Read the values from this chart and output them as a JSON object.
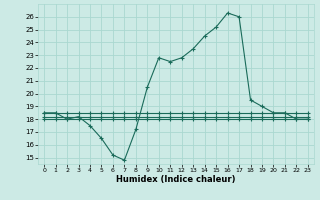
{
  "title": "",
  "xlabel": "Humidex (Indice chaleur)",
  "ylabel": "",
  "bg_color": "#cceae5",
  "grid_color": "#aad8d0",
  "line_color": "#1a6b5a",
  "x_data": [
    0,
    1,
    2,
    3,
    4,
    5,
    6,
    7,
    8,
    9,
    10,
    11,
    12,
    13,
    14,
    15,
    16,
    17,
    18,
    19,
    20,
    21,
    22,
    23
  ],
  "y_main": [
    18.5,
    18.5,
    18.0,
    18.2,
    17.5,
    16.5,
    15.2,
    14.8,
    17.2,
    20.5,
    22.8,
    22.5,
    22.8,
    23.5,
    24.5,
    25.2,
    26.3,
    26.0,
    19.5,
    19.0,
    18.5,
    18.5,
    18.0,
    18.0
  ],
  "y_flat1": [
    18.5,
    18.5,
    18.5,
    18.5,
    18.5,
    18.5,
    18.5,
    18.5,
    18.5,
    18.5,
    18.5,
    18.5,
    18.5,
    18.5,
    18.5,
    18.5,
    18.5,
    18.5,
    18.5,
    18.5,
    18.5,
    18.5,
    18.5,
    18.5
  ],
  "y_flat2": [
    18.0,
    18.0,
    18.0,
    18.0,
    18.0,
    18.0,
    18.0,
    18.0,
    18.0,
    18.0,
    18.0,
    18.0,
    18.0,
    18.0,
    18.0,
    18.0,
    18.0,
    18.0,
    18.0,
    18.0,
    18.0,
    18.0,
    18.0,
    18.0
  ],
  "y_flat3": [
    18.2,
    18.2,
    18.2,
    18.2,
    18.2,
    18.2,
    18.2,
    18.2,
    18.2,
    18.2,
    18.2,
    18.2,
    18.2,
    18.2,
    18.2,
    18.2,
    18.2,
    18.2,
    18.2,
    18.2,
    18.2,
    18.2,
    18.2,
    18.2
  ],
  "ylim": [
    14.5,
    27.0
  ],
  "xlim": [
    -0.5,
    23.5
  ],
  "yticks": [
    15,
    16,
    17,
    18,
    19,
    20,
    21,
    22,
    23,
    24,
    25,
    26
  ],
  "xtick_labels": [
    "0",
    "1",
    "2",
    "3",
    "4",
    "5",
    "6",
    "7",
    "8",
    "9",
    "10",
    "11",
    "12",
    "13",
    "14",
    "15",
    "16",
    "17",
    "18",
    "19",
    "20",
    "21",
    "22",
    "23"
  ],
  "marker": "+",
  "marker_size": 3,
  "line_width": 0.8,
  "tick_fontsize": 5,
  "xlabel_fontsize": 6
}
